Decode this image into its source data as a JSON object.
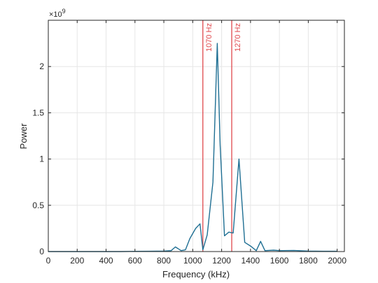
{
  "chart_data": {
    "type": "line",
    "xlabel": "Frequency (kHz)",
    "ylabel": "Power",
    "y_exponent_label": "×10",
    "y_exponent_power": "9",
    "xlim": [
      0,
      2050
    ],
    "ylim": [
      0,
      2.5
    ],
    "x_ticks": [
      0,
      200,
      400,
      600,
      800,
      1000,
      1200,
      1400,
      1600,
      1800,
      2000
    ],
    "x_tick_labels": [
      "0",
      "200",
      "400",
      "600",
      "800",
      "1000",
      "1200",
      "1400",
      "1600",
      "1800",
      "2000"
    ],
    "y_ticks": [
      0,
      0.5,
      1,
      1.5,
      2
    ],
    "y_tick_labels": [
      "0",
      "0.5",
      "1",
      "1.5",
      "2"
    ],
    "grid": true,
    "series": [
      {
        "color": "#1f6f93",
        "x": [
          0,
          100,
          200,
          300,
          400,
          500,
          600,
          700,
          800,
          850,
          880,
          920,
          950,
          980,
          1020,
          1050,
          1070,
          1100,
          1140,
          1170,
          1190,
          1220,
          1250,
          1280,
          1320,
          1360,
          1400,
          1440,
          1470,
          1500,
          1560,
          1600,
          1700,
          1800,
          1900,
          2000
        ],
        "y": [
          0,
          0,
          0,
          0,
          0,
          0,
          0.002,
          0.003,
          0.005,
          0.01,
          0.05,
          0.01,
          0.02,
          0.14,
          0.25,
          0.3,
          0.02,
          0.18,
          0.75,
          2.25,
          1.15,
          0.17,
          0.21,
          0.2,
          1.0,
          0.1,
          0.06,
          0.01,
          0.11,
          0.01,
          0.015,
          0.01,
          0.012,
          0.005,
          0.003,
          0.003
        ]
      }
    ],
    "markers": [
      {
        "x": 1070,
        "label": "1070 Hz",
        "color": "#e0474c"
      },
      {
        "x": 1270,
        "label": "1270 Hz",
        "color": "#e0474c"
      }
    ]
  }
}
